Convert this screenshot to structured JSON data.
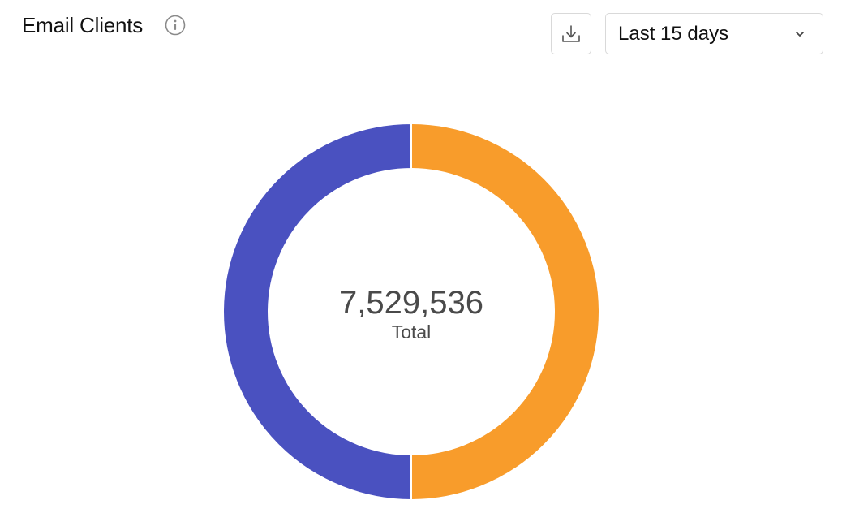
{
  "header": {
    "title": "Email Clients"
  },
  "controls": {
    "download_icon": "download-icon",
    "info_icon": "info-icon",
    "range": {
      "selected": "Last 15 days",
      "chevron_icon": "chevron-down-icon"
    }
  },
  "center": {
    "value": "7,529,536",
    "label": "Total"
  },
  "colors": {
    "orange": "#F89C2B",
    "indigo": "#4A51C0",
    "border": "#d9d9d9",
    "text": "#4a4a4a"
  },
  "chart_data": {
    "type": "pie",
    "donut": true,
    "title": "Email Clients",
    "total": 7529536,
    "slices": [
      {
        "value": 3764768,
        "color": "#F89C2B"
      },
      {
        "value": 3764768,
        "color": "#4A51C0"
      }
    ]
  }
}
